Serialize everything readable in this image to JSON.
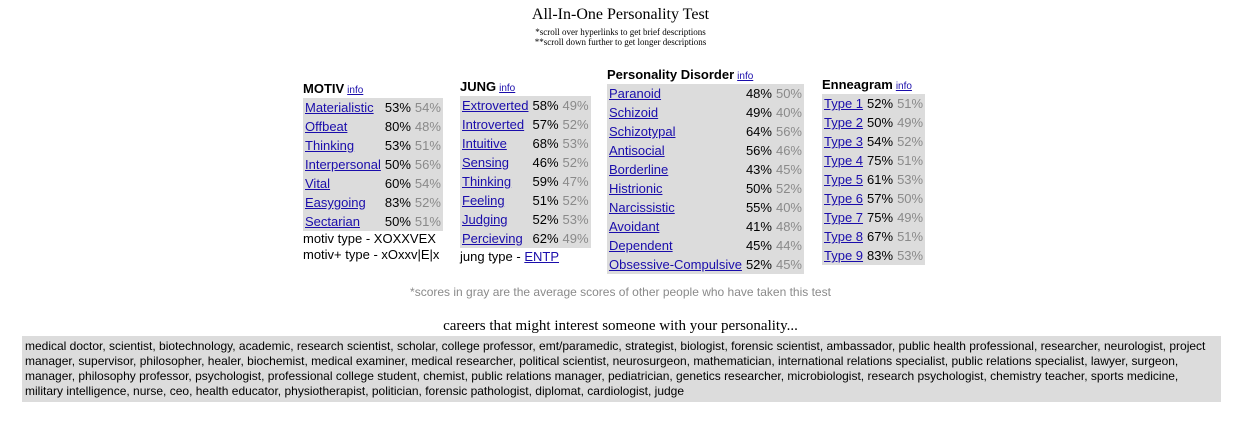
{
  "header": {
    "title": "All-In-One Personality Test",
    "note1": "*scroll over hyperlinks to get brief descriptions",
    "note2": "**scroll down further to get longer descriptions"
  },
  "motiv": {
    "heading": "MOTIV",
    "info": "info",
    "rows": [
      {
        "name": "Materialistic",
        "score": "53%",
        "avg": "54%"
      },
      {
        "name": "Offbeat",
        "score": "80%",
        "avg": "48%"
      },
      {
        "name": "Thinking",
        "score": "53%",
        "avg": "51%"
      },
      {
        "name": "Interpersonal",
        "score": "50%",
        "avg": "56%"
      },
      {
        "name": "Vital",
        "score": "60%",
        "avg": "54%"
      },
      {
        "name": "Easygoing",
        "score": "83%",
        "avg": "52%"
      },
      {
        "name": "Sectarian",
        "score": "50%",
        "avg": "51%"
      }
    ],
    "type_line": "motiv type - XOXXVEX",
    "plus_type_line": "motiv+ type - xOxxv|E|x"
  },
  "jung": {
    "heading": "JUNG",
    "info": "info",
    "rows": [
      {
        "name": "Extroverted",
        "score": "58%",
        "avg": "49%"
      },
      {
        "name": "Introverted",
        "score": "57%",
        "avg": "52%"
      },
      {
        "name": "Intuitive",
        "score": "68%",
        "avg": "53%"
      },
      {
        "name": "Sensing",
        "score": "46%",
        "avg": "52%"
      },
      {
        "name": "Thinking",
        "score": "59%",
        "avg": "47%"
      },
      {
        "name": "Feeling",
        "score": "51%",
        "avg": "52%"
      },
      {
        "name": "Judging",
        "score": "52%",
        "avg": "53%"
      },
      {
        "name": "Percieving",
        "score": "62%",
        "avg": "49%"
      }
    ],
    "type_prefix": "jung type - ",
    "type_value": "ENTP"
  },
  "disorder": {
    "heading": "Personality Disorder",
    "info": "info",
    "rows": [
      {
        "name": "Paranoid",
        "score": "48%",
        "avg": "50%"
      },
      {
        "name": "Schizoid",
        "score": "49%",
        "avg": "40%"
      },
      {
        "name": "Schizotypal",
        "score": "64%",
        "avg": "56%"
      },
      {
        "name": "Antisocial",
        "score": "56%",
        "avg": "46%"
      },
      {
        "name": "Borderline",
        "score": "43%",
        "avg": "45%"
      },
      {
        "name": "Histrionic",
        "score": "50%",
        "avg": "52%"
      },
      {
        "name": "Narcissistic",
        "score": "55%",
        "avg": "40%"
      },
      {
        "name": "Avoidant",
        "score": "41%",
        "avg": "48%"
      },
      {
        "name": "Dependent",
        "score": "45%",
        "avg": "44%"
      },
      {
        "name": "Obsessive-Compulsive",
        "score": "52%",
        "avg": "45%"
      }
    ]
  },
  "enneagram": {
    "heading": "Enneagram",
    "info": "info",
    "rows": [
      {
        "name": "Type 1",
        "score": "52%",
        "avg": "51%"
      },
      {
        "name": "Type 2",
        "score": "50%",
        "avg": "49%"
      },
      {
        "name": "Type 3",
        "score": "54%",
        "avg": "52%"
      },
      {
        "name": "Type 4",
        "score": "75%",
        "avg": "51%"
      },
      {
        "name": "Type 5",
        "score": "61%",
        "avg": "53%"
      },
      {
        "name": "Type 6",
        "score": "57%",
        "avg": "50%"
      },
      {
        "name": "Type 7",
        "score": "75%",
        "avg": "49%"
      },
      {
        "name": "Type 8",
        "score": "67%",
        "avg": "51%"
      },
      {
        "name": "Type 9",
        "score": "83%",
        "avg": "53%"
      }
    ]
  },
  "gray_note": "*scores in gray are the average scores of other people who have taken this test",
  "careers": {
    "title": "careers that might interest someone with your personality...",
    "text": "medical doctor, scientist, biotechnology, academic, research scientist, scholar, college professor, emt/paramedic, strategist, biologist, forensic scientist, ambassador, public health professional, researcher, neurologist, project manager, supervisor, philosopher, healer, biochemist, medical examiner, medical researcher, political scientist, neurosurgeon, mathematician, international relations specialist, public relations specialist, lawyer, surgeon, manager, philosophy professor, psychologist, professional college student, chemist, public relations manager, pediatrician, genetics researcher, microbiologist, research psychologist, chemistry teacher, sports medicine, military intelligence, nurse, ceo, health educator, physiotherapist, politician, forensic pathologist, diplomat, cardiologist, judge"
  },
  "colors": {
    "link": "#1a0dab",
    "table_bg": "#dcdcdc",
    "avg_text": "#8a8a8a"
  }
}
